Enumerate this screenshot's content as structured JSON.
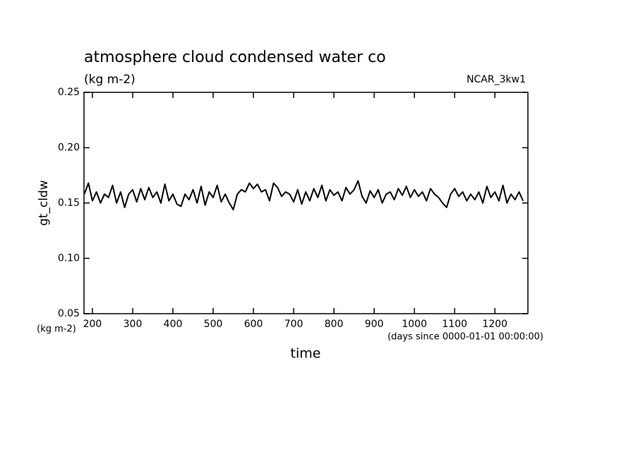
{
  "chart_data": {
    "type": "line",
    "title": "atmosphere cloud condensed water co",
    "subtitle": "(kg m-2)",
    "annotation": "NCAR_3kw1",
    "y_label": "gt_cldw",
    "y_unit": "(kg m-2)",
    "x_label": "time",
    "x_unit": "(days since 0000-01-01 00:00:00)",
    "xlim": [
      179,
      1282
    ],
    "xticks": [
      200,
      300,
      400,
      500,
      600,
      700,
      800,
      900,
      1000,
      1100,
      1200
    ],
    "ylim": [
      0.05,
      0.25
    ],
    "yticks": [
      0.05,
      {
        "value": 0.1,
        "label": "0.10"
      },
      0.15,
      {
        "value": 0.2,
        "label": "0.20"
      },
      0.25
    ],
    "x": [
      180,
      190,
      200,
      210,
      220,
      230,
      240,
      250,
      260,
      270,
      280,
      290,
      300,
      310,
      320,
      330,
      340,
      350,
      360,
      370,
      380,
      390,
      400,
      410,
      420,
      430,
      440,
      450,
      460,
      470,
      480,
      490,
      500,
      510,
      520,
      530,
      540,
      550,
      560,
      570,
      580,
      590,
      600,
      610,
      620,
      630,
      640,
      650,
      660,
      670,
      680,
      690,
      700,
      710,
      720,
      730,
      740,
      750,
      760,
      770,
      780,
      790,
      800,
      810,
      820,
      830,
      840,
      850,
      860,
      870,
      880,
      890,
      900,
      910,
      920,
      930,
      940,
      950,
      960,
      970,
      980,
      990,
      1000,
      1010,
      1020,
      1030,
      1040,
      1050,
      1060,
      1070,
      1080,
      1090,
      1100,
      1110,
      1120,
      1130,
      1140,
      1150,
      1160,
      1170,
      1180,
      1190,
      1200,
      1210,
      1220,
      1230,
      1240,
      1250,
      1260,
      1270
    ],
    "series": [
      {
        "name": "gt_cldw",
        "color": "#000000",
        "values": [
          0.158,
          0.168,
          0.152,
          0.16,
          0.15,
          0.158,
          0.155,
          0.166,
          0.15,
          0.16,
          0.146,
          0.158,
          0.162,
          0.151,
          0.163,
          0.153,
          0.164,
          0.155,
          0.16,
          0.15,
          0.167,
          0.152,
          0.158,
          0.149,
          0.147,
          0.158,
          0.153,
          0.162,
          0.15,
          0.165,
          0.148,
          0.16,
          0.155,
          0.166,
          0.151,
          0.158,
          0.15,
          0.144,
          0.158,
          0.162,
          0.16,
          0.168,
          0.163,
          0.167,
          0.16,
          0.162,
          0.152,
          0.168,
          0.164,
          0.156,
          0.16,
          0.158,
          0.151,
          0.162,
          0.149,
          0.16,
          0.152,
          0.163,
          0.155,
          0.166,
          0.152,
          0.162,
          0.157,
          0.16,
          0.152,
          0.164,
          0.158,
          0.162,
          0.17,
          0.156,
          0.15,
          0.161,
          0.155,
          0.162,
          0.15,
          0.158,
          0.16,
          0.153,
          0.163,
          0.157,
          0.165,
          0.155,
          0.162,
          0.156,
          0.16,
          0.152,
          0.163,
          0.158,
          0.155,
          0.15,
          0.146,
          0.158,
          0.163,
          0.156,
          0.16,
          0.152,
          0.158,
          0.153,
          0.16,
          0.15,
          0.165,
          0.155,
          0.16,
          0.152,
          0.166,
          0.15,
          0.158,
          0.153,
          0.16,
          0.152
        ]
      }
    ]
  }
}
